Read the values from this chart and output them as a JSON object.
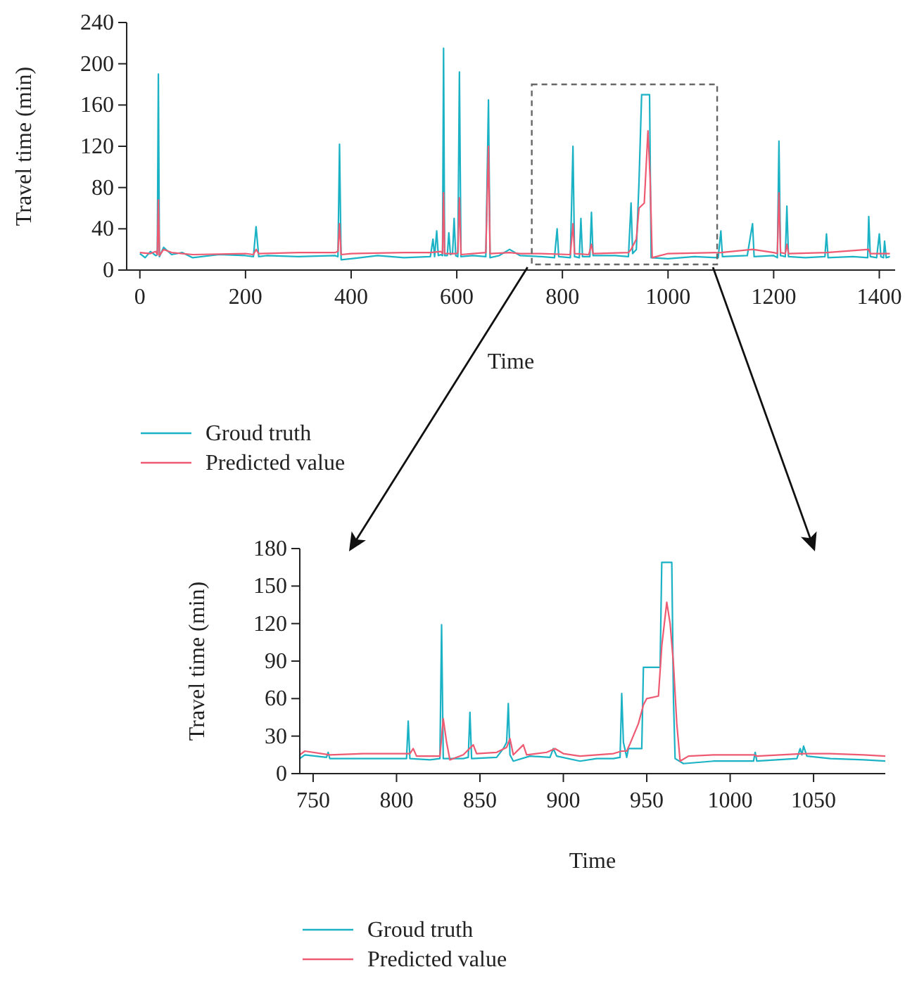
{
  "chart_data": [
    {
      "type": "line",
      "xlabel": "Time",
      "ylabel": "Travel time (min)",
      "xlim": [
        -25,
        1430
      ],
      "ylim": [
        0,
        240
      ],
      "xticks": [
        0,
        200,
        400,
        600,
        800,
        1000,
        1200,
        1400
      ],
      "yticks": [
        0,
        40,
        80,
        120,
        160,
        200,
        240
      ],
      "grid": false,
      "legend": "bottom",
      "series": [
        {
          "name": "Groud truth",
          "color": "#1ab2c4",
          "x": [
            0,
            10,
            20,
            30,
            33,
            35,
            37,
            45,
            60,
            80,
            100,
            150,
            200,
            215,
            220,
            225,
            240,
            300,
            370,
            375,
            378,
            381,
            400,
            450,
            500,
            550,
            555,
            558,
            562,
            565,
            570,
            573,
            575,
            577,
            582,
            585,
            588,
            592,
            595,
            598,
            602,
            605,
            608,
            630,
            655,
            660,
            663,
            680,
            700,
            720,
            760,
            785,
            790,
            793,
            815,
            820,
            823,
            832,
            835,
            838,
            852,
            855,
            858,
            900,
            925,
            930,
            933,
            940,
            945,
            950,
            965,
            968,
            1000,
            1050,
            1095,
            1100,
            1103,
            1150,
            1160,
            1163,
            1200,
            1207,
            1210,
            1213,
            1222,
            1225,
            1228,
            1260,
            1297,
            1300,
            1303,
            1350,
            1378,
            1380,
            1383,
            1395,
            1400,
            1403,
            1408,
            1410,
            1413,
            1420
          ],
          "values": [
            16,
            12,
            18,
            14,
            15,
            190,
            13,
            22,
            15,
            17,
            12,
            15,
            14,
            13,
            42,
            13,
            14,
            13,
            14,
            13,
            122,
            10,
            11,
            14,
            12,
            13,
            30,
            13,
            38,
            14,
            15,
            14,
            215,
            14,
            14,
            36,
            15,
            16,
            50,
            14,
            13,
            192,
            13,
            14,
            13,
            165,
            12,
            14,
            20,
            14,
            13,
            12,
            40,
            13,
            12,
            120,
            13,
            12,
            50,
            13,
            13,
            56,
            14,
            14,
            13,
            65,
            16,
            20,
            85,
            170,
            170,
            12,
            11,
            13,
            12,
            38,
            13,
            14,
            45,
            13,
            14,
            12,
            125,
            14,
            13,
            62,
            13,
            12,
            13,
            35,
            12,
            13,
            12,
            52,
            13,
            12,
            35,
            13,
            12,
            28,
            12,
            13
          ]
        },
        {
          "name": "Predicted value",
          "color": "#ee5a72",
          "x": [
            0,
            20,
            30,
            33,
            35,
            37,
            45,
            60,
            100,
            200,
            215,
            220,
            225,
            300,
            370,
            375,
            378,
            381,
            400,
            500,
            550,
            570,
            573,
            575,
            577,
            600,
            602,
            605,
            608,
            630,
            655,
            660,
            663,
            700,
            720,
            760,
            815,
            820,
            823,
            850,
            855,
            858,
            925,
            930,
            940,
            945,
            955,
            962,
            966,
            970,
            1000,
            1100,
            1160,
            1200,
            1207,
            1210,
            1213,
            1222,
            1225,
            1228,
            1300,
            1380,
            1383,
            1420
          ],
          "values": [
            17,
            16,
            18,
            15,
            68,
            14,
            20,
            17,
            15,
            16,
            15,
            20,
            16,
            17,
            17,
            18,
            45,
            15,
            16,
            17,
            17,
            18,
            16,
            75,
            16,
            16,
            17,
            70,
            15,
            16,
            17,
            120,
            16,
            17,
            16,
            16,
            15,
            45,
            16,
            15,
            25,
            16,
            17,
            20,
            30,
            60,
            65,
            135,
            90,
            12,
            16,
            17,
            20,
            17,
            16,
            75,
            17,
            16,
            25,
            16,
            17,
            20,
            16,
            16
          ]
        }
      ]
    },
    {
      "type": "line",
      "xlabel": "Time",
      "ylabel": "Travel time (min)",
      "xlim": [
        742,
        1093
      ],
      "ylim": [
        0,
        180
      ],
      "xticks": [
        750,
        800,
        850,
        900,
        950,
        1000,
        1050
      ],
      "yticks": [
        0,
        30,
        60,
        90,
        120,
        150,
        180
      ],
      "grid": false,
      "legend": "bottom",
      "series": [
        {
          "name": "Groud truth",
          "color": "#1ab2c4",
          "x": [
            742,
            745,
            758,
            759,
            760,
            780,
            800,
            806,
            807,
            808,
            820,
            826,
            827,
            828,
            840,
            843,
            844,
            845,
            860,
            864,
            866,
            867,
            868,
            870,
            880,
            892,
            894,
            896,
            910,
            920,
            930,
            934,
            935,
            936,
            938,
            939,
            940,
            947,
            948,
            958,
            959,
            965,
            966,
            967,
            972,
            990,
            1014,
            1015,
            1016,
            1040,
            1042,
            1043,
            1044,
            1046,
            1060,
            1080,
            1093
          ],
          "values": [
            12,
            15,
            13,
            17,
            12,
            12,
            12,
            12,
            42,
            12,
            11,
            12,
            119,
            12,
            12,
            13,
            49,
            12,
            13,
            20,
            25,
            56,
            15,
            10,
            14,
            13,
            20,
            14,
            10,
            12,
            12,
            13,
            64,
            25,
            13,
            20,
            20,
            20,
            85,
            85,
            169,
            169,
            60,
            12,
            8,
            10,
            10,
            17,
            10,
            12,
            20,
            15,
            22,
            14,
            12,
            11,
            10
          ]
        },
        {
          "name": "Predicted value",
          "color": "#ee5a72",
          "x": [
            742,
            745,
            760,
            780,
            800,
            808,
            810,
            812,
            826,
            828,
            830,
            832,
            840,
            846,
            848,
            860,
            866,
            868,
            870,
            876,
            878,
            890,
            895,
            900,
            910,
            930,
            935,
            938,
            940,
            945,
            948,
            950,
            957,
            959,
            962,
            964,
            966,
            968,
            970,
            975,
            990,
            1014,
            1016,
            1044,
            1060,
            1080,
            1093
          ],
          "values": [
            15,
            18,
            15,
            16,
            16,
            16,
            20,
            14,
            14,
            44,
            25,
            11,
            15,
            23,
            16,
            17,
            21,
            28,
            15,
            23,
            15,
            17,
            20,
            16,
            14,
            16,
            18,
            18,
            24,
            40,
            55,
            60,
            62,
            102,
            137,
            120,
            88,
            40,
            10,
            14,
            15,
            15,
            14,
            16,
            16,
            15,
            14
          ]
        }
      ]
    }
  ]
}
